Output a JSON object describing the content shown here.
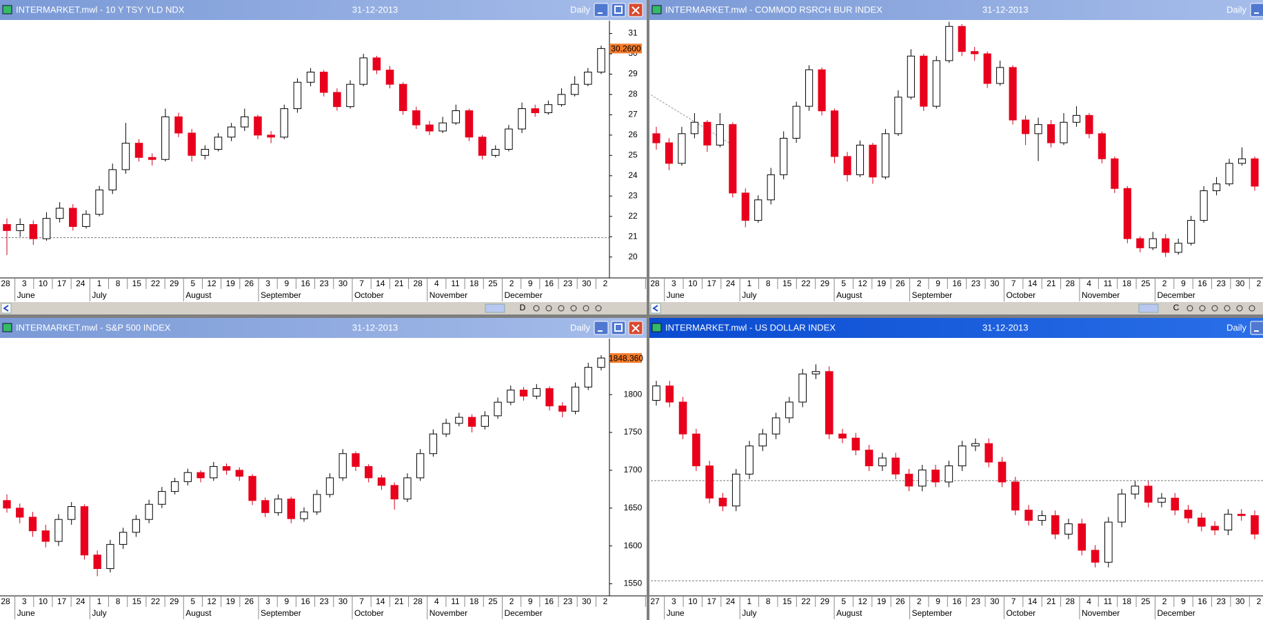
{
  "chart_data": [
    {
      "type": "candlestick",
      "title": "INTERMARKET.mwl - 10 Y TSY YLD NDX",
      "date": "31-12-2013",
      "period": "Daily",
      "toolbar_mode": "D",
      "ylim": [
        18.97,
        31.63
      ],
      "yticks": [
        20,
        21,
        22,
        23,
        24,
        25,
        26,
        27,
        28,
        29,
        30,
        31
      ],
      "price_tag": {
        "value": 30.26,
        "label": "30.2600"
      },
      "ref_lines": [
        20.95
      ],
      "days": [
        "28",
        "3",
        "10",
        "17",
        "24",
        "1",
        "8",
        "15",
        "22",
        "29",
        "5",
        "12",
        "19",
        "26",
        "3",
        "9",
        "16",
        "23",
        "30",
        "7",
        "14",
        "21",
        "28",
        "4",
        "11",
        "18",
        "25",
        "2",
        "9",
        "16",
        "23",
        "30",
        "2"
      ],
      "months": [
        "June",
        "July",
        "August",
        "September",
        "October",
        "November",
        "December"
      ],
      "ohlc": [
        [
          21.6,
          21.9,
          20.1,
          21.3
        ],
        [
          21.3,
          21.9,
          21.0,
          21.6
        ],
        [
          21.6,
          21.8,
          20.6,
          20.9
        ],
        [
          20.9,
          22.2,
          20.8,
          21.9
        ],
        [
          21.9,
          22.7,
          21.7,
          22.4
        ],
        [
          22.4,
          22.6,
          21.3,
          21.5
        ],
        [
          21.5,
          22.3,
          21.4,
          22.1
        ],
        [
          22.1,
          23.5,
          22.0,
          23.3
        ],
        [
          23.3,
          24.6,
          23.1,
          24.3
        ],
        [
          24.3,
          26.6,
          24.1,
          25.6
        ],
        [
          25.6,
          25.8,
          24.7,
          24.9
        ],
        [
          24.9,
          25.1,
          24.5,
          24.8
        ],
        [
          24.8,
          27.3,
          24.7,
          26.9
        ],
        [
          26.9,
          27.1,
          25.9,
          26.1
        ],
        [
          26.1,
          26.3,
          24.7,
          25.0
        ],
        [
          25.0,
          25.5,
          24.8,
          25.3
        ],
        [
          25.3,
          26.1,
          25.2,
          25.9
        ],
        [
          25.9,
          26.6,
          25.7,
          26.4
        ],
        [
          26.4,
          27.3,
          26.2,
          26.9
        ],
        [
          26.9,
          27.0,
          25.8,
          26.0
        ],
        [
          26.0,
          26.2,
          25.6,
          25.9
        ],
        [
          25.9,
          27.5,
          25.8,
          27.3
        ],
        [
          27.3,
          28.8,
          27.1,
          28.6
        ],
        [
          28.6,
          29.3,
          28.4,
          29.1
        ],
        [
          29.1,
          29.2,
          27.9,
          28.1
        ],
        [
          28.1,
          28.3,
          27.2,
          27.4
        ],
        [
          27.4,
          28.7,
          27.3,
          28.5
        ],
        [
          28.5,
          30.0,
          28.4,
          29.8
        ],
        [
          29.8,
          29.9,
          29.0,
          29.2
        ],
        [
          29.2,
          29.4,
          28.3,
          28.5
        ],
        [
          28.5,
          28.6,
          27.0,
          27.2
        ],
        [
          27.2,
          27.4,
          26.3,
          26.5
        ],
        [
          26.5,
          26.7,
          26.0,
          26.2
        ],
        [
          26.2,
          26.9,
          26.1,
          26.6
        ],
        [
          26.6,
          27.5,
          26.5,
          27.2
        ],
        [
          27.2,
          27.3,
          25.7,
          25.9
        ],
        [
          25.9,
          26.0,
          24.8,
          25.0
        ],
        [
          25.0,
          25.5,
          24.9,
          25.3
        ],
        [
          25.3,
          26.5,
          25.2,
          26.3
        ],
        [
          26.3,
          27.6,
          26.1,
          27.3
        ],
        [
          27.3,
          27.5,
          26.9,
          27.1
        ],
        [
          27.1,
          27.7,
          27.0,
          27.5
        ],
        [
          27.5,
          28.3,
          27.4,
          28.0
        ],
        [
          28.0,
          28.9,
          27.9,
          28.5
        ],
        [
          28.5,
          29.3,
          28.4,
          29.1
        ],
        [
          29.1,
          30.4,
          29.0,
          30.26
        ]
      ]
    },
    {
      "type": "candlestick",
      "title": "INTERMARKET.mwl - COMMOD RSRCH BUR INDEX",
      "date": "31-12-2013",
      "period": "Daily",
      "toolbar_mode": "C",
      "ylim": [
        19.08,
        30.35
      ],
      "trend_line": [
        27.1,
        24.9
      ],
      "days": [
        "28",
        "3",
        "10",
        "17",
        "24",
        "1",
        "8",
        "15",
        "22",
        "29",
        "5",
        "12",
        "19",
        "26",
        "2",
        "9",
        "16",
        "23",
        "30",
        "7",
        "14",
        "21",
        "28",
        "4",
        "11",
        "18",
        "25",
        "2",
        "9",
        "16",
        "23",
        "30",
        "2"
      ],
      "months": [
        "June",
        "July",
        "August",
        "September",
        "October",
        "November",
        "December"
      ],
      "ohlc": [
        [
          25.4,
          25.7,
          24.7,
          25.0
        ],
        [
          25.0,
          25.2,
          23.8,
          24.1
        ],
        [
          24.1,
          25.7,
          24.0,
          25.4
        ],
        [
          25.4,
          26.3,
          25.2,
          25.9
        ],
        [
          25.9,
          26.0,
          24.6,
          24.9
        ],
        [
          24.9,
          26.3,
          24.8,
          25.8
        ],
        [
          25.8,
          25.9,
          22.6,
          22.8
        ],
        [
          22.8,
          23.0,
          21.3,
          21.6
        ],
        [
          21.6,
          22.7,
          21.5,
          22.5
        ],
        [
          22.5,
          23.9,
          22.3,
          23.6
        ],
        [
          23.6,
          25.5,
          23.4,
          25.2
        ],
        [
          25.2,
          26.8,
          25.0,
          26.6
        ],
        [
          26.6,
          28.4,
          26.4,
          28.2
        ],
        [
          28.2,
          28.3,
          26.2,
          26.4
        ],
        [
          26.4,
          26.5,
          24.1,
          24.4
        ],
        [
          24.4,
          24.6,
          23.3,
          23.6
        ],
        [
          23.6,
          25.1,
          23.5,
          24.9
        ],
        [
          24.9,
          25.0,
          23.2,
          23.5
        ],
        [
          23.5,
          25.6,
          23.4,
          25.4
        ],
        [
          25.4,
          27.3,
          25.3,
          27.0
        ],
        [
          27.0,
          29.1,
          26.9,
          28.8
        ],
        [
          28.8,
          28.9,
          26.4,
          26.6
        ],
        [
          26.6,
          28.8,
          26.5,
          28.6
        ],
        [
          28.6,
          30.3,
          28.5,
          30.1
        ],
        [
          30.1,
          30.2,
          28.8,
          29.0
        ],
        [
          29.0,
          29.2,
          28.6,
          28.9
        ],
        [
          28.9,
          29.0,
          27.4,
          27.6
        ],
        [
          27.6,
          28.6,
          27.5,
          28.3
        ],
        [
          28.3,
          28.4,
          25.8,
          26.0
        ],
        [
          26.0,
          26.2,
          24.9,
          25.4
        ],
        [
          25.4,
          26.1,
          24.2,
          25.8
        ],
        [
          25.8,
          26.0,
          24.8,
          25.0
        ],
        [
          25.0,
          26.3,
          24.9,
          25.9
        ],
        [
          25.9,
          26.6,
          25.7,
          26.2
        ],
        [
          26.2,
          26.3,
          25.2,
          25.4
        ],
        [
          25.4,
          25.5,
          24.1,
          24.3
        ],
        [
          24.3,
          24.4,
          22.8,
          23.0
        ],
        [
          23.0,
          23.1,
          20.6,
          20.8
        ],
        [
          20.8,
          20.9,
          20.2,
          20.4
        ],
        [
          20.4,
          21.1,
          20.3,
          20.8
        ],
        [
          20.8,
          21.0,
          20.0,
          20.2
        ],
        [
          20.2,
          20.8,
          20.1,
          20.6
        ],
        [
          20.6,
          21.8,
          20.5,
          21.6
        ],
        [
          21.6,
          23.1,
          21.5,
          22.9
        ],
        [
          22.9,
          23.5,
          22.7,
          23.2
        ],
        [
          23.2,
          24.3,
          23.1,
          24.1
        ],
        [
          24.1,
          24.8,
          24.0,
          24.3
        ],
        [
          24.3,
          24.4,
          22.9,
          23.1
        ]
      ]
    },
    {
      "type": "candlestick",
      "title": "INTERMARKET.mwl - S&P 500 INDEX",
      "date": "31-12-2013",
      "period": "Daily",
      "ylim": [
        1534,
        1874
      ],
      "yticks": [
        1550,
        1600,
        1650,
        1700,
        1750,
        1800
      ],
      "price_tag": {
        "value": 1848.36,
        "label": "1848.360"
      },
      "days": [
        "28",
        "3",
        "10",
        "17",
        "24",
        "1",
        "8",
        "15",
        "22",
        "29",
        "5",
        "12",
        "19",
        "26",
        "3",
        "9",
        "16",
        "23",
        "30",
        "7",
        "14",
        "21",
        "28",
        "4",
        "11",
        "18",
        "25",
        "2",
        "9",
        "16",
        "23",
        "30",
        "2"
      ],
      "months": [
        "June",
        "July",
        "August",
        "September",
        "October",
        "November",
        "December"
      ],
      "ohlc": [
        [
          1660,
          1668,
          1644,
          1650
        ],
        [
          1650,
          1656,
          1630,
          1638
        ],
        [
          1638,
          1645,
          1612,
          1620
        ],
        [
          1620,
          1628,
          1598,
          1606
        ],
        [
          1606,
          1642,
          1600,
          1635
        ],
        [
          1635,
          1658,
          1628,
          1652
        ],
        [
          1652,
          1655,
          1582,
          1588
        ],
        [
          1588,
          1594,
          1560,
          1570
        ],
        [
          1570,
          1608,
          1565,
          1602
        ],
        [
          1602,
          1624,
          1596,
          1618
        ],
        [
          1618,
          1641,
          1612,
          1635
        ],
        [
          1635,
          1661,
          1630,
          1655
        ],
        [
          1655,
          1678,
          1650,
          1672
        ],
        [
          1672,
          1690,
          1668,
          1685
        ],
        [
          1685,
          1702,
          1680,
          1697
        ],
        [
          1697,
          1700,
          1684,
          1690
        ],
        [
          1690,
          1711,
          1686,
          1705
        ],
        [
          1705,
          1709,
          1694,
          1700
        ],
        [
          1700,
          1704,
          1686,
          1692
        ],
        [
          1692,
          1695,
          1654,
          1660
        ],
        [
          1660,
          1664,
          1638,
          1644
        ],
        [
          1644,
          1668,
          1640,
          1662
        ],
        [
          1662,
          1665,
          1630,
          1636
        ],
        [
          1636,
          1651,
          1632,
          1645
        ],
        [
          1645,
          1674,
          1641,
          1668
        ],
        [
          1668,
          1696,
          1664,
          1690
        ],
        [
          1690,
          1728,
          1686,
          1722
        ],
        [
          1722,
          1725,
          1699,
          1705
        ],
        [
          1705,
          1708,
          1684,
          1690
        ],
        [
          1690,
          1694,
          1674,
          1680
        ],
        [
          1680,
          1684,
          1648,
          1662
        ],
        [
          1662,
          1696,
          1658,
          1690
        ],
        [
          1690,
          1728,
          1686,
          1722
        ],
        [
          1722,
          1754,
          1718,
          1748
        ],
        [
          1748,
          1768,
          1744,
          1762
        ],
        [
          1762,
          1776,
          1758,
          1770
        ],
        [
          1770,
          1774,
          1750,
          1758
        ],
        [
          1758,
          1778,
          1754,
          1772
        ],
        [
          1772,
          1796,
          1768,
          1790
        ],
        [
          1790,
          1812,
          1786,
          1806
        ],
        [
          1806,
          1810,
          1792,
          1798
        ],
        [
          1798,
          1814,
          1794,
          1808
        ],
        [
          1808,
          1811,
          1779,
          1785
        ],
        [
          1785,
          1790,
          1770,
          1778
        ],
        [
          1778,
          1816,
          1774,
          1810
        ],
        [
          1810,
          1842,
          1806,
          1836
        ],
        [
          1836,
          1852,
          1832,
          1848.36
        ]
      ]
    },
    {
      "type": "candlestick",
      "title": "INTERMARKET.mwl - US DOLLAR INDEX",
      "date": "31-12-2013",
      "period": "Daily",
      "ylim": [
        78.5,
        86.0
      ],
      "ref_lines": [
        81.86,
        78.94
      ],
      "days": [
        "27",
        "3",
        "10",
        "17",
        "24",
        "1",
        "8",
        "15",
        "22",
        "29",
        "5",
        "12",
        "19",
        "26",
        "2",
        "9",
        "16",
        "23",
        "30",
        "7",
        "14",
        "21",
        "28",
        "4",
        "11",
        "18",
        "25",
        "2",
        "9",
        "16",
        "23",
        "30",
        "2"
      ],
      "months": [
        "June",
        "July",
        "August",
        "September",
        "October",
        "November",
        "December"
      ],
      "ohlc": [
        [
          84.2,
          84.77,
          84.05,
          84.62
        ],
        [
          84.62,
          84.77,
          84.0,
          84.15
        ],
        [
          84.15,
          84.3,
          83.07,
          83.22
        ],
        [
          83.22,
          83.37,
          82.14,
          82.29
        ],
        [
          82.29,
          82.44,
          81.2,
          81.35
        ],
        [
          81.35,
          81.5,
          80.97,
          81.12
        ],
        [
          81.12,
          82.2,
          80.97,
          82.05
        ],
        [
          82.05,
          83.02,
          81.9,
          82.87
        ],
        [
          82.87,
          83.37,
          82.72,
          83.22
        ],
        [
          83.22,
          83.84,
          83.07,
          83.69
        ],
        [
          83.69,
          84.3,
          83.54,
          84.15
        ],
        [
          84.15,
          85.12,
          84.0,
          84.97
        ],
        [
          84.97,
          85.25,
          84.82,
          85.04
        ],
        [
          85.04,
          85.19,
          83.07,
          83.22
        ],
        [
          83.22,
          83.37,
          82.95,
          83.1
        ],
        [
          83.1,
          83.25,
          82.6,
          82.75
        ],
        [
          82.75,
          82.9,
          82.14,
          82.29
        ],
        [
          82.29,
          82.67,
          82.14,
          82.52
        ],
        [
          82.52,
          82.67,
          81.9,
          82.05
        ],
        [
          82.05,
          82.2,
          81.55,
          81.7
        ],
        [
          81.7,
          82.32,
          81.55,
          82.17
        ],
        [
          82.17,
          82.32,
          81.67,
          81.82
        ],
        [
          81.82,
          82.44,
          81.67,
          82.29
        ],
        [
          82.29,
          83.02,
          82.14,
          82.87
        ],
        [
          82.87,
          83.09,
          82.72,
          82.94
        ],
        [
          82.94,
          83.09,
          82.25,
          82.4
        ],
        [
          82.4,
          82.55,
          81.67,
          81.82
        ],
        [
          81.82,
          81.97,
          80.85,
          81.0
        ],
        [
          81.0,
          81.15,
          80.55,
          80.7
        ],
        [
          80.7,
          80.99,
          80.55,
          80.84
        ],
        [
          80.84,
          80.99,
          80.15,
          80.3
        ],
        [
          80.3,
          80.75,
          80.15,
          80.6
        ],
        [
          80.6,
          80.75,
          79.68,
          79.83
        ],
        [
          79.83,
          79.98,
          79.33,
          79.48
        ],
        [
          79.48,
          80.8,
          79.33,
          80.65
        ],
        [
          80.65,
          81.62,
          80.5,
          81.47
        ],
        [
          81.47,
          81.85,
          81.32,
          81.7
        ],
        [
          81.7,
          81.85,
          81.08,
          81.23
        ],
        [
          81.23,
          81.5,
          81.08,
          81.35
        ],
        [
          81.35,
          81.5,
          80.85,
          81.0
        ],
        [
          81.0,
          81.15,
          80.62,
          80.77
        ],
        [
          80.77,
          80.92,
          80.38,
          80.53
        ],
        [
          80.53,
          80.68,
          80.27,
          80.42
        ],
        [
          80.42,
          81.03,
          80.27,
          80.88
        ],
        [
          80.88,
          81.03,
          80.69,
          80.84
        ],
        [
          80.84,
          80.99,
          80.15,
          80.3
        ]
      ]
    }
  ]
}
